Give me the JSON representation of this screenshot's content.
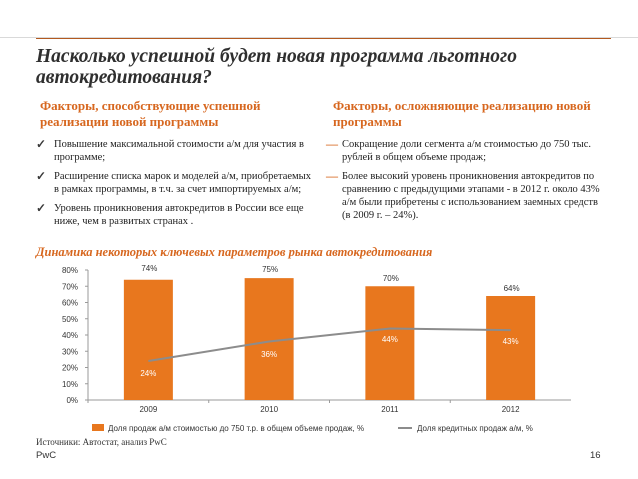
{
  "title": "Насколько успешной будет новая программа льготного автокредитования?",
  "left": {
    "heading": "Факторы, способствующие успешной реализации новой программы",
    "items": [
      "Повышение максимальной стоимости а/м для участия в программе;",
      "Расширение списка марок и моделей а/м, приобретаемых в рамках программы, в т.ч. за счет импортируемых а/м;",
      "Уровень проникновения автокредитов в России все еще ниже, чем в развитых странах ."
    ]
  },
  "right": {
    "heading": "Факторы, осложняющие реализацию новой программы",
    "items": [
      "Сокращение доли сегмента а/м стоимостью до 750 тыс. рублей в общем объеме продаж;",
      "Более высокий уровень проникновения автокредитов по сравнению с предыдущими этапами - в 2012 г. около 43% а/м были прибретены с использованием заемных средств (в 2009 г. – 24%)."
    ]
  },
  "chart_title": "Динамика некоторых ключевых параметров рынка автокредитования",
  "chart_data": {
    "type": "bar",
    "categories": [
      "2009",
      "2010",
      "2011",
      "2012"
    ],
    "series": [
      {
        "name": "Доля продаж а/м стоимостью до 750 т.р. в общем объеме продаж, %",
        "type": "bar",
        "values": [
          74,
          75,
          70,
          64
        ],
        "labels": [
          "74%",
          "75%",
          "70%",
          "64%"
        ],
        "color": "#e8771e"
      },
      {
        "name": "Доля кредитных продаж а/м, %",
        "type": "line",
        "values": [
          24,
          36,
          44,
          43
        ],
        "labels": [
          "24%",
          "36%",
          "44%",
          "43%"
        ],
        "color": "#8c8c8c"
      }
    ],
    "ylim": [
      0,
      80
    ],
    "yticks": [
      "0%",
      "10%",
      "20%",
      "30%",
      "40%",
      "50%",
      "60%",
      "70%",
      "80%"
    ],
    "grid": false,
    "legend_position": "bottom"
  },
  "source": "Источники: Автостат, анализ PwC",
  "brand": "PwC",
  "page_number": "16",
  "colors": {
    "accent": "#d7671f",
    "bar": "#e8771e",
    "line": "#8c8c8c"
  }
}
